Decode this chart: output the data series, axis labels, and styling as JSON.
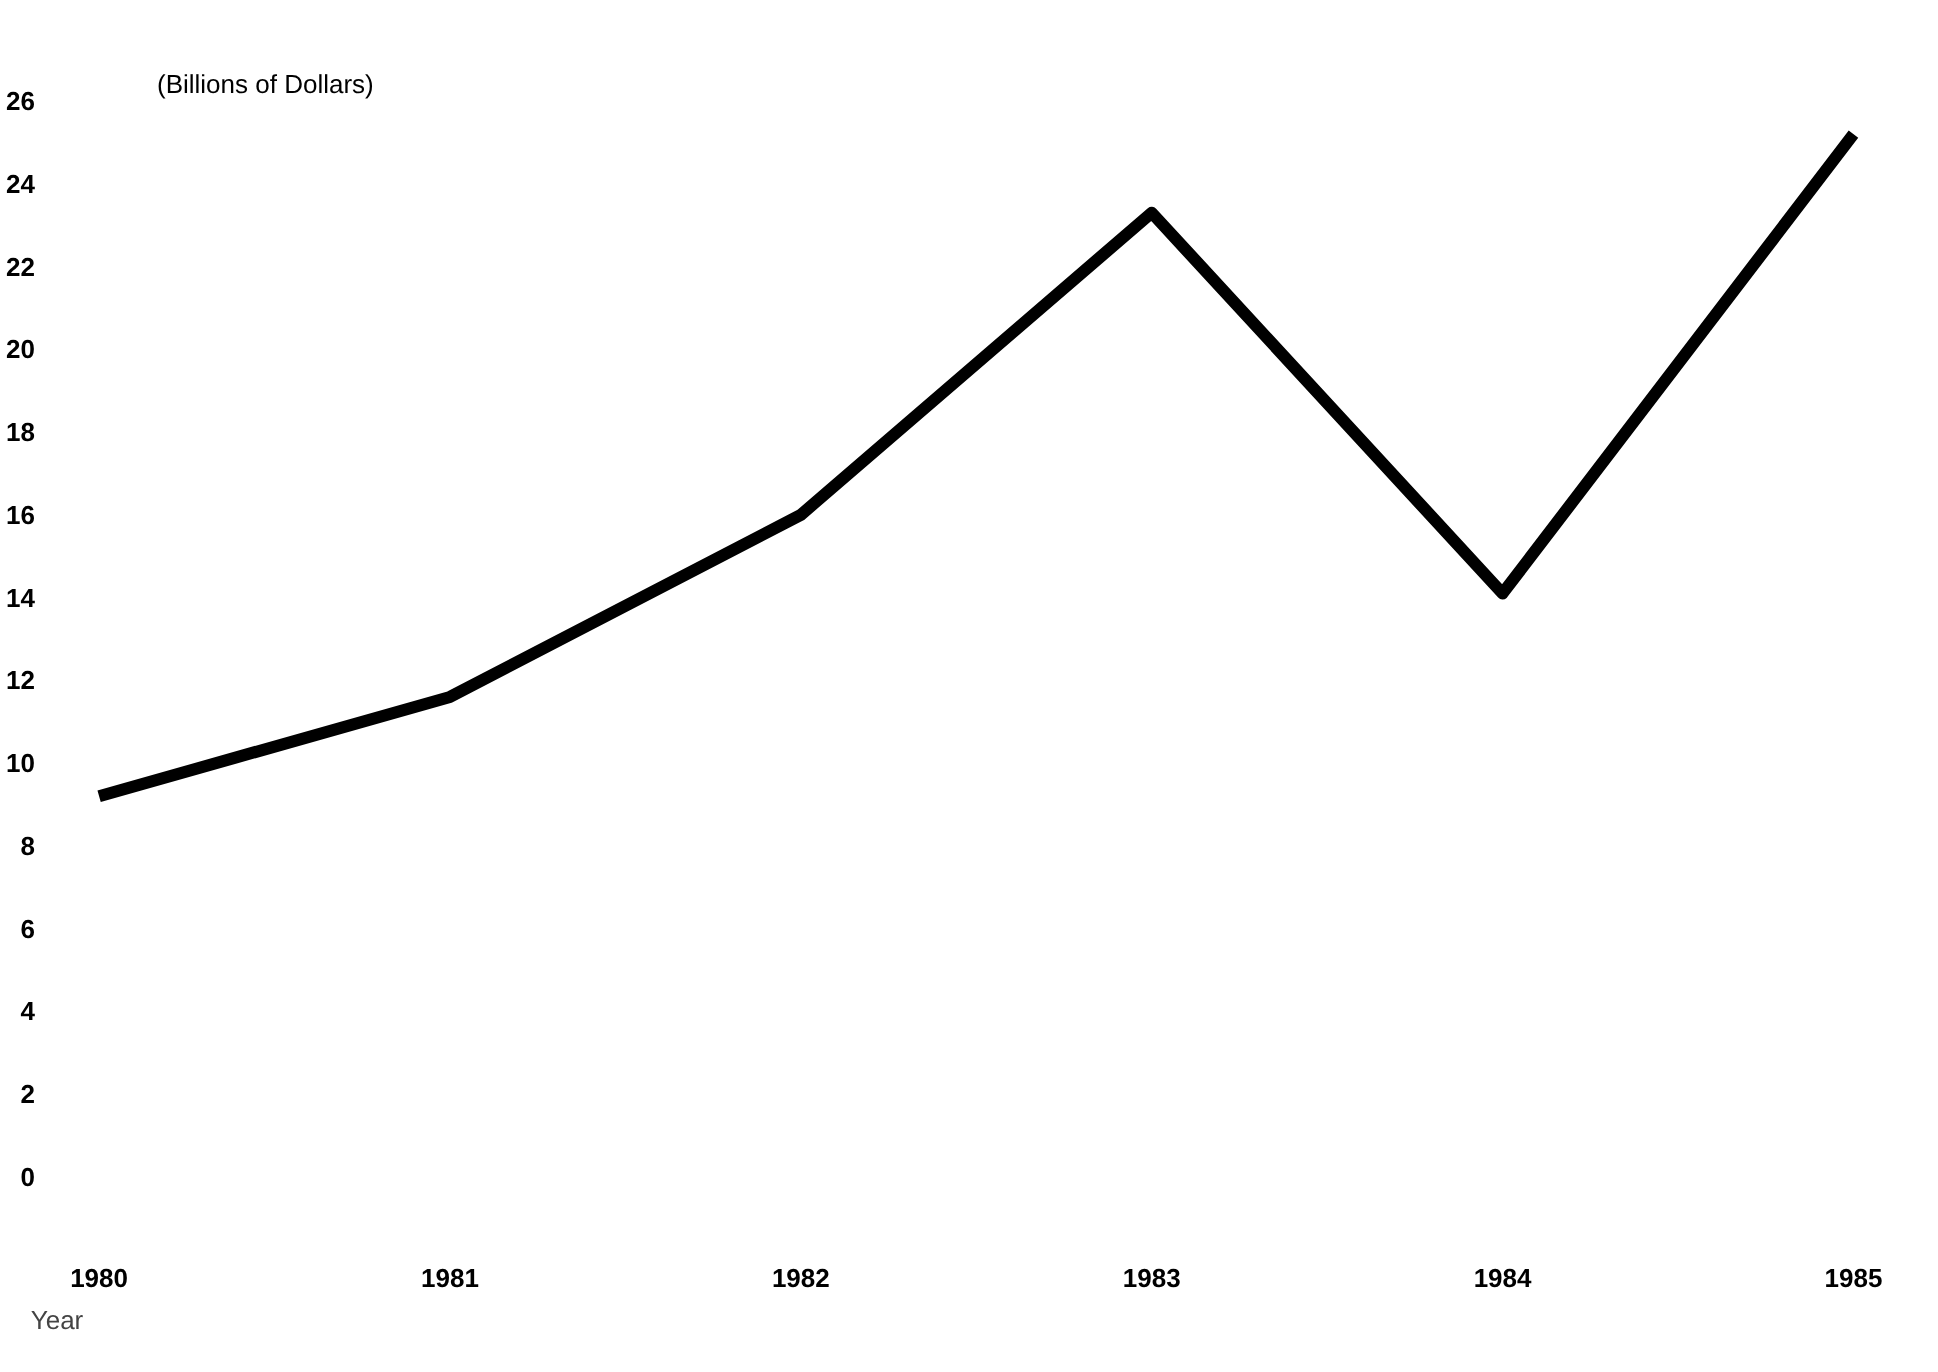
{
  "chart_data": {
    "type": "line",
    "ylabel": "(Billions of Dollars)",
    "xlabel": "Year",
    "categories": [
      "1980",
      "1981",
      "1982",
      "1983",
      "1984",
      "1985"
    ],
    "series": [
      {
        "color": "#000000",
        "values": [
          9.2,
          11.6,
          16.0,
          23.3,
          14.1,
          25.2
        ]
      }
    ],
    "ylim": [
      0,
      26
    ],
    "yticks": [
      0,
      2,
      4,
      6,
      8,
      10,
      12,
      14,
      16,
      18,
      20,
      22,
      24,
      26
    ],
    "grid": false,
    "marker": "none",
    "line_style": "solid"
  }
}
